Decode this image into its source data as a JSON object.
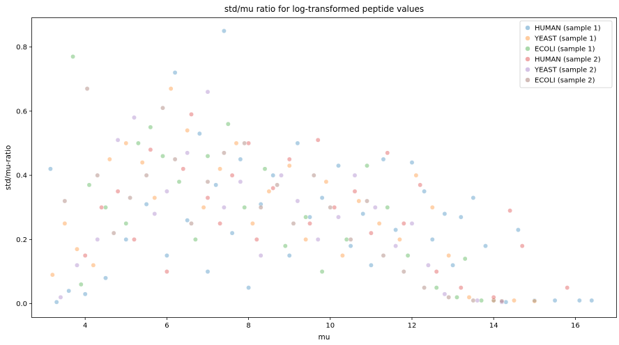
{
  "chart_data": {
    "type": "scatter",
    "title": "std/mu ratio for log-transformed peptide values",
    "xlabel": "mu",
    "ylabel": "std/mu-ratio",
    "xlim": [
      2.7,
      17.0
    ],
    "ylim": [
      -0.042,
      0.89
    ],
    "xticks": [
      4,
      6,
      8,
      10,
      12,
      14,
      16
    ],
    "yticks": [
      0.0,
      0.2,
      0.4,
      0.6,
      0.8
    ],
    "grid": false,
    "legend_position": "top-right",
    "marker_alpha": 0.35,
    "series": [
      {
        "name": "HUMAN (sample 1)",
        "color": "#1f77b4",
        "points": [
          [
            3.15,
            0.42
          ],
          [
            3.3,
            0.005
          ],
          [
            3.6,
            0.04
          ],
          [
            4.0,
            0.03
          ],
          [
            4.5,
            0.08
          ],
          [
            5.0,
            0.2
          ],
          [
            5.5,
            0.31
          ],
          [
            6.0,
            0.15
          ],
          [
            6.2,
            0.72
          ],
          [
            6.5,
            0.26
          ],
          [
            6.8,
            0.53
          ],
          [
            7.0,
            0.1
          ],
          [
            7.2,
            0.37
          ],
          [
            7.4,
            0.85
          ],
          [
            7.6,
            0.22
          ],
          [
            7.8,
            0.45
          ],
          [
            8.0,
            0.05
          ],
          [
            8.3,
            0.31
          ],
          [
            8.6,
            0.4
          ],
          [
            9.0,
            0.15
          ],
          [
            9.2,
            0.5
          ],
          [
            9.5,
            0.27
          ],
          [
            9.8,
            0.33
          ],
          [
            10.2,
            0.43
          ],
          [
            10.5,
            0.18
          ],
          [
            10.8,
            0.28
          ],
          [
            11.0,
            0.12
          ],
          [
            11.3,
            0.45
          ],
          [
            11.6,
            0.23
          ],
          [
            12.0,
            0.44
          ],
          [
            12.3,
            0.35
          ],
          [
            12.5,
            0.2
          ],
          [
            12.8,
            0.28
          ],
          [
            13.0,
            0.12
          ],
          [
            13.2,
            0.27
          ],
          [
            13.5,
            0.33
          ],
          [
            13.8,
            0.18
          ],
          [
            14.0,
            0.01
          ],
          [
            14.3,
            0.005
          ],
          [
            14.6,
            0.23
          ],
          [
            15.0,
            0.01
          ],
          [
            15.5,
            0.01
          ],
          [
            16.1,
            0.01
          ],
          [
            16.4,
            0.01
          ]
        ]
      },
      {
        "name": "YEAST (sample 1)",
        "color": "#ff7f0e",
        "points": [
          [
            3.2,
            0.09
          ],
          [
            3.5,
            0.25
          ],
          [
            3.8,
            0.17
          ],
          [
            4.2,
            0.12
          ],
          [
            4.6,
            0.45
          ],
          [
            5.0,
            0.5
          ],
          [
            5.4,
            0.44
          ],
          [
            5.7,
            0.33
          ],
          [
            6.1,
            0.67
          ],
          [
            6.5,
            0.54
          ],
          [
            6.9,
            0.3
          ],
          [
            7.3,
            0.42
          ],
          [
            7.7,
            0.5
          ],
          [
            8.1,
            0.25
          ],
          [
            8.5,
            0.35
          ],
          [
            9.0,
            0.43
          ],
          [
            9.4,
            0.2
          ],
          [
            9.9,
            0.38
          ],
          [
            10.3,
            0.15
          ],
          [
            10.7,
            0.32
          ],
          [
            11.2,
            0.25
          ],
          [
            11.7,
            0.2
          ],
          [
            12.1,
            0.4
          ],
          [
            12.5,
            0.3
          ],
          [
            12.9,
            0.15
          ],
          [
            13.4,
            0.02
          ],
          [
            14.0,
            0.01
          ],
          [
            14.5,
            0.01
          ],
          [
            15.0,
            0.008
          ]
        ]
      },
      {
        "name": "ECOLI (sample 1)",
        "color": "#2ca02c",
        "points": [
          [
            3.7,
            0.77
          ],
          [
            3.9,
            0.06
          ],
          [
            4.1,
            0.37
          ],
          [
            4.5,
            0.3
          ],
          [
            5.0,
            0.25
          ],
          [
            5.3,
            0.5
          ],
          [
            5.6,
            0.55
          ],
          [
            5.9,
            0.46
          ],
          [
            6.3,
            0.38
          ],
          [
            6.7,
            0.2
          ],
          [
            7.0,
            0.46
          ],
          [
            7.5,
            0.56
          ],
          [
            7.9,
            0.3
          ],
          [
            8.4,
            0.42
          ],
          [
            8.9,
            0.18
          ],
          [
            9.4,
            0.27
          ],
          [
            9.8,
            0.1
          ],
          [
            10.4,
            0.2
          ],
          [
            10.9,
            0.43
          ],
          [
            11.4,
            0.3
          ],
          [
            11.9,
            0.15
          ],
          [
            12.6,
            0.05
          ],
          [
            13.1,
            0.02
          ],
          [
            13.3,
            0.14
          ],
          [
            13.7,
            0.01
          ]
        ]
      },
      {
        "name": "HUMAN (sample 2)",
        "color": "#d62728",
        "points": [
          [
            4.0,
            0.15
          ],
          [
            4.4,
            0.3
          ],
          [
            4.8,
            0.35
          ],
          [
            5.2,
            0.2
          ],
          [
            5.6,
            0.48
          ],
          [
            6.0,
            0.1
          ],
          [
            6.4,
            0.42
          ],
          [
            6.6,
            0.59
          ],
          [
            7.0,
            0.33
          ],
          [
            7.3,
            0.25
          ],
          [
            7.6,
            0.4
          ],
          [
            8.0,
            0.5
          ],
          [
            8.2,
            0.2
          ],
          [
            8.6,
            0.36
          ],
          [
            9.0,
            0.45
          ],
          [
            9.5,
            0.25
          ],
          [
            9.7,
            0.51
          ],
          [
            10.1,
            0.3
          ],
          [
            10.6,
            0.35
          ],
          [
            11.0,
            0.22
          ],
          [
            11.4,
            0.47
          ],
          [
            11.8,
            0.25
          ],
          [
            12.2,
            0.37
          ],
          [
            12.6,
            0.1
          ],
          [
            13.2,
            0.05
          ],
          [
            14.0,
            0.02
          ],
          [
            14.4,
            0.29
          ],
          [
            14.7,
            0.18
          ],
          [
            15.8,
            0.05
          ]
        ]
      },
      {
        "name": "YEAST (sample 2)",
        "color": "#9467bd",
        "points": [
          [
            3.4,
            0.02
          ],
          [
            3.8,
            0.12
          ],
          [
            4.3,
            0.2
          ],
          [
            4.8,
            0.51
          ],
          [
            5.2,
            0.58
          ],
          [
            5.7,
            0.28
          ],
          [
            6.0,
            0.35
          ],
          [
            6.5,
            0.47
          ],
          [
            7.0,
            0.66
          ],
          [
            7.4,
            0.3
          ],
          [
            7.8,
            0.38
          ],
          [
            8.3,
            0.15
          ],
          [
            8.8,
            0.4
          ],
          [
            9.2,
            0.32
          ],
          [
            9.7,
            0.2
          ],
          [
            10.2,
            0.27
          ],
          [
            10.6,
            0.4
          ],
          [
            11.1,
            0.3
          ],
          [
            11.6,
            0.18
          ],
          [
            12.0,
            0.25
          ],
          [
            12.4,
            0.12
          ],
          [
            12.8,
            0.03
          ],
          [
            13.6,
            0.01
          ],
          [
            14.2,
            0.005
          ]
        ]
      },
      {
        "name": "ECOLI (sample 2)",
        "color": "#8c564b",
        "points": [
          [
            3.5,
            0.32
          ],
          [
            4.05,
            0.67
          ],
          [
            4.3,
            0.4
          ],
          [
            4.7,
            0.22
          ],
          [
            5.1,
            0.33
          ],
          [
            5.5,
            0.4
          ],
          [
            5.9,
            0.61
          ],
          [
            6.2,
            0.45
          ],
          [
            6.6,
            0.25
          ],
          [
            7.0,
            0.38
          ],
          [
            7.4,
            0.47
          ],
          [
            7.9,
            0.5
          ],
          [
            8.3,
            0.3
          ],
          [
            8.7,
            0.37
          ],
          [
            9.1,
            0.25
          ],
          [
            9.6,
            0.4
          ],
          [
            10.0,
            0.3
          ],
          [
            10.5,
            0.2
          ],
          [
            10.9,
            0.32
          ],
          [
            11.3,
            0.15
          ],
          [
            11.8,
            0.1
          ],
          [
            12.3,
            0.05
          ],
          [
            12.9,
            0.02
          ],
          [
            13.5,
            0.01
          ],
          [
            14.2,
            0.008
          ]
        ]
      }
    ]
  }
}
